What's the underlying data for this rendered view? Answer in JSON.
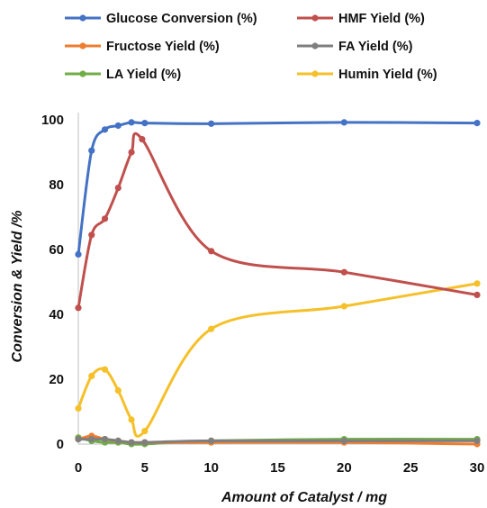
{
  "chart_data": {
    "type": "line",
    "title": "",
    "xlabel": "Amount of Catalyst / mg",
    "ylabel": "Conversion  & Yield /%",
    "xlim": [
      0,
      30
    ],
    "ylim": [
      0,
      100
    ],
    "xticks": [
      0,
      5,
      10,
      15,
      20,
      25,
      30
    ],
    "yticks": [
      0,
      20,
      40,
      60,
      80,
      100
    ],
    "grid": false,
    "legend_position": "top",
    "series": [
      {
        "name": "Glucose Conversion (%)",
        "color": "#4472c4",
        "x": [
          0,
          1,
          2,
          3,
          4,
          5,
          10,
          20,
          30
        ],
        "y": [
          58.5,
          90.5,
          97.0,
          98.2,
          99.2,
          99.0,
          98.8,
          99.2,
          99.0
        ]
      },
      {
        "name": "HMF Yield (%)",
        "color": "#c0504d",
        "x": [
          0,
          1,
          2,
          3,
          4,
          4.8,
          10,
          20,
          30
        ],
        "y": [
          42.0,
          64.5,
          69.5,
          79.0,
          90.0,
          94.0,
          59.5,
          53.0,
          46.0
        ]
      },
      {
        "name": "Fructose Yield (%)",
        "color": "#ed7d31",
        "x": [
          0,
          1,
          2,
          3,
          4,
          5,
          10,
          20,
          30
        ],
        "y": [
          1.5,
          2.5,
          1.5,
          1.0,
          0.5,
          0.5,
          0.5,
          0.5,
          0.0
        ]
      },
      {
        "name": "FA Yield (%)",
        "color": "#7f7f7f",
        "x": [
          0,
          1,
          2,
          3,
          4,
          5,
          10,
          20,
          30
        ],
        "y": [
          1.5,
          1.5,
          1.5,
          1.0,
          0.5,
          0.5,
          1.0,
          1.0,
          1.0
        ]
      },
      {
        "name": "LA Yield (%)",
        "color": "#70ad47",
        "x": [
          0,
          1,
          2,
          3,
          4,
          5,
          10,
          20,
          30
        ],
        "y": [
          2.0,
          1.0,
          0.5,
          0.5,
          0.0,
          0.0,
          1.0,
          1.5,
          1.5
        ]
      },
      {
        "name": "Humin Yield (%)",
        "color": "#f5c02a",
        "x": [
          0,
          1,
          2,
          3,
          4,
          5,
          10,
          20,
          30
        ],
        "y": [
          11.0,
          21.0,
          23.0,
          16.5,
          7.5,
          4.0,
          35.5,
          42.5,
          49.5
        ]
      }
    ]
  }
}
